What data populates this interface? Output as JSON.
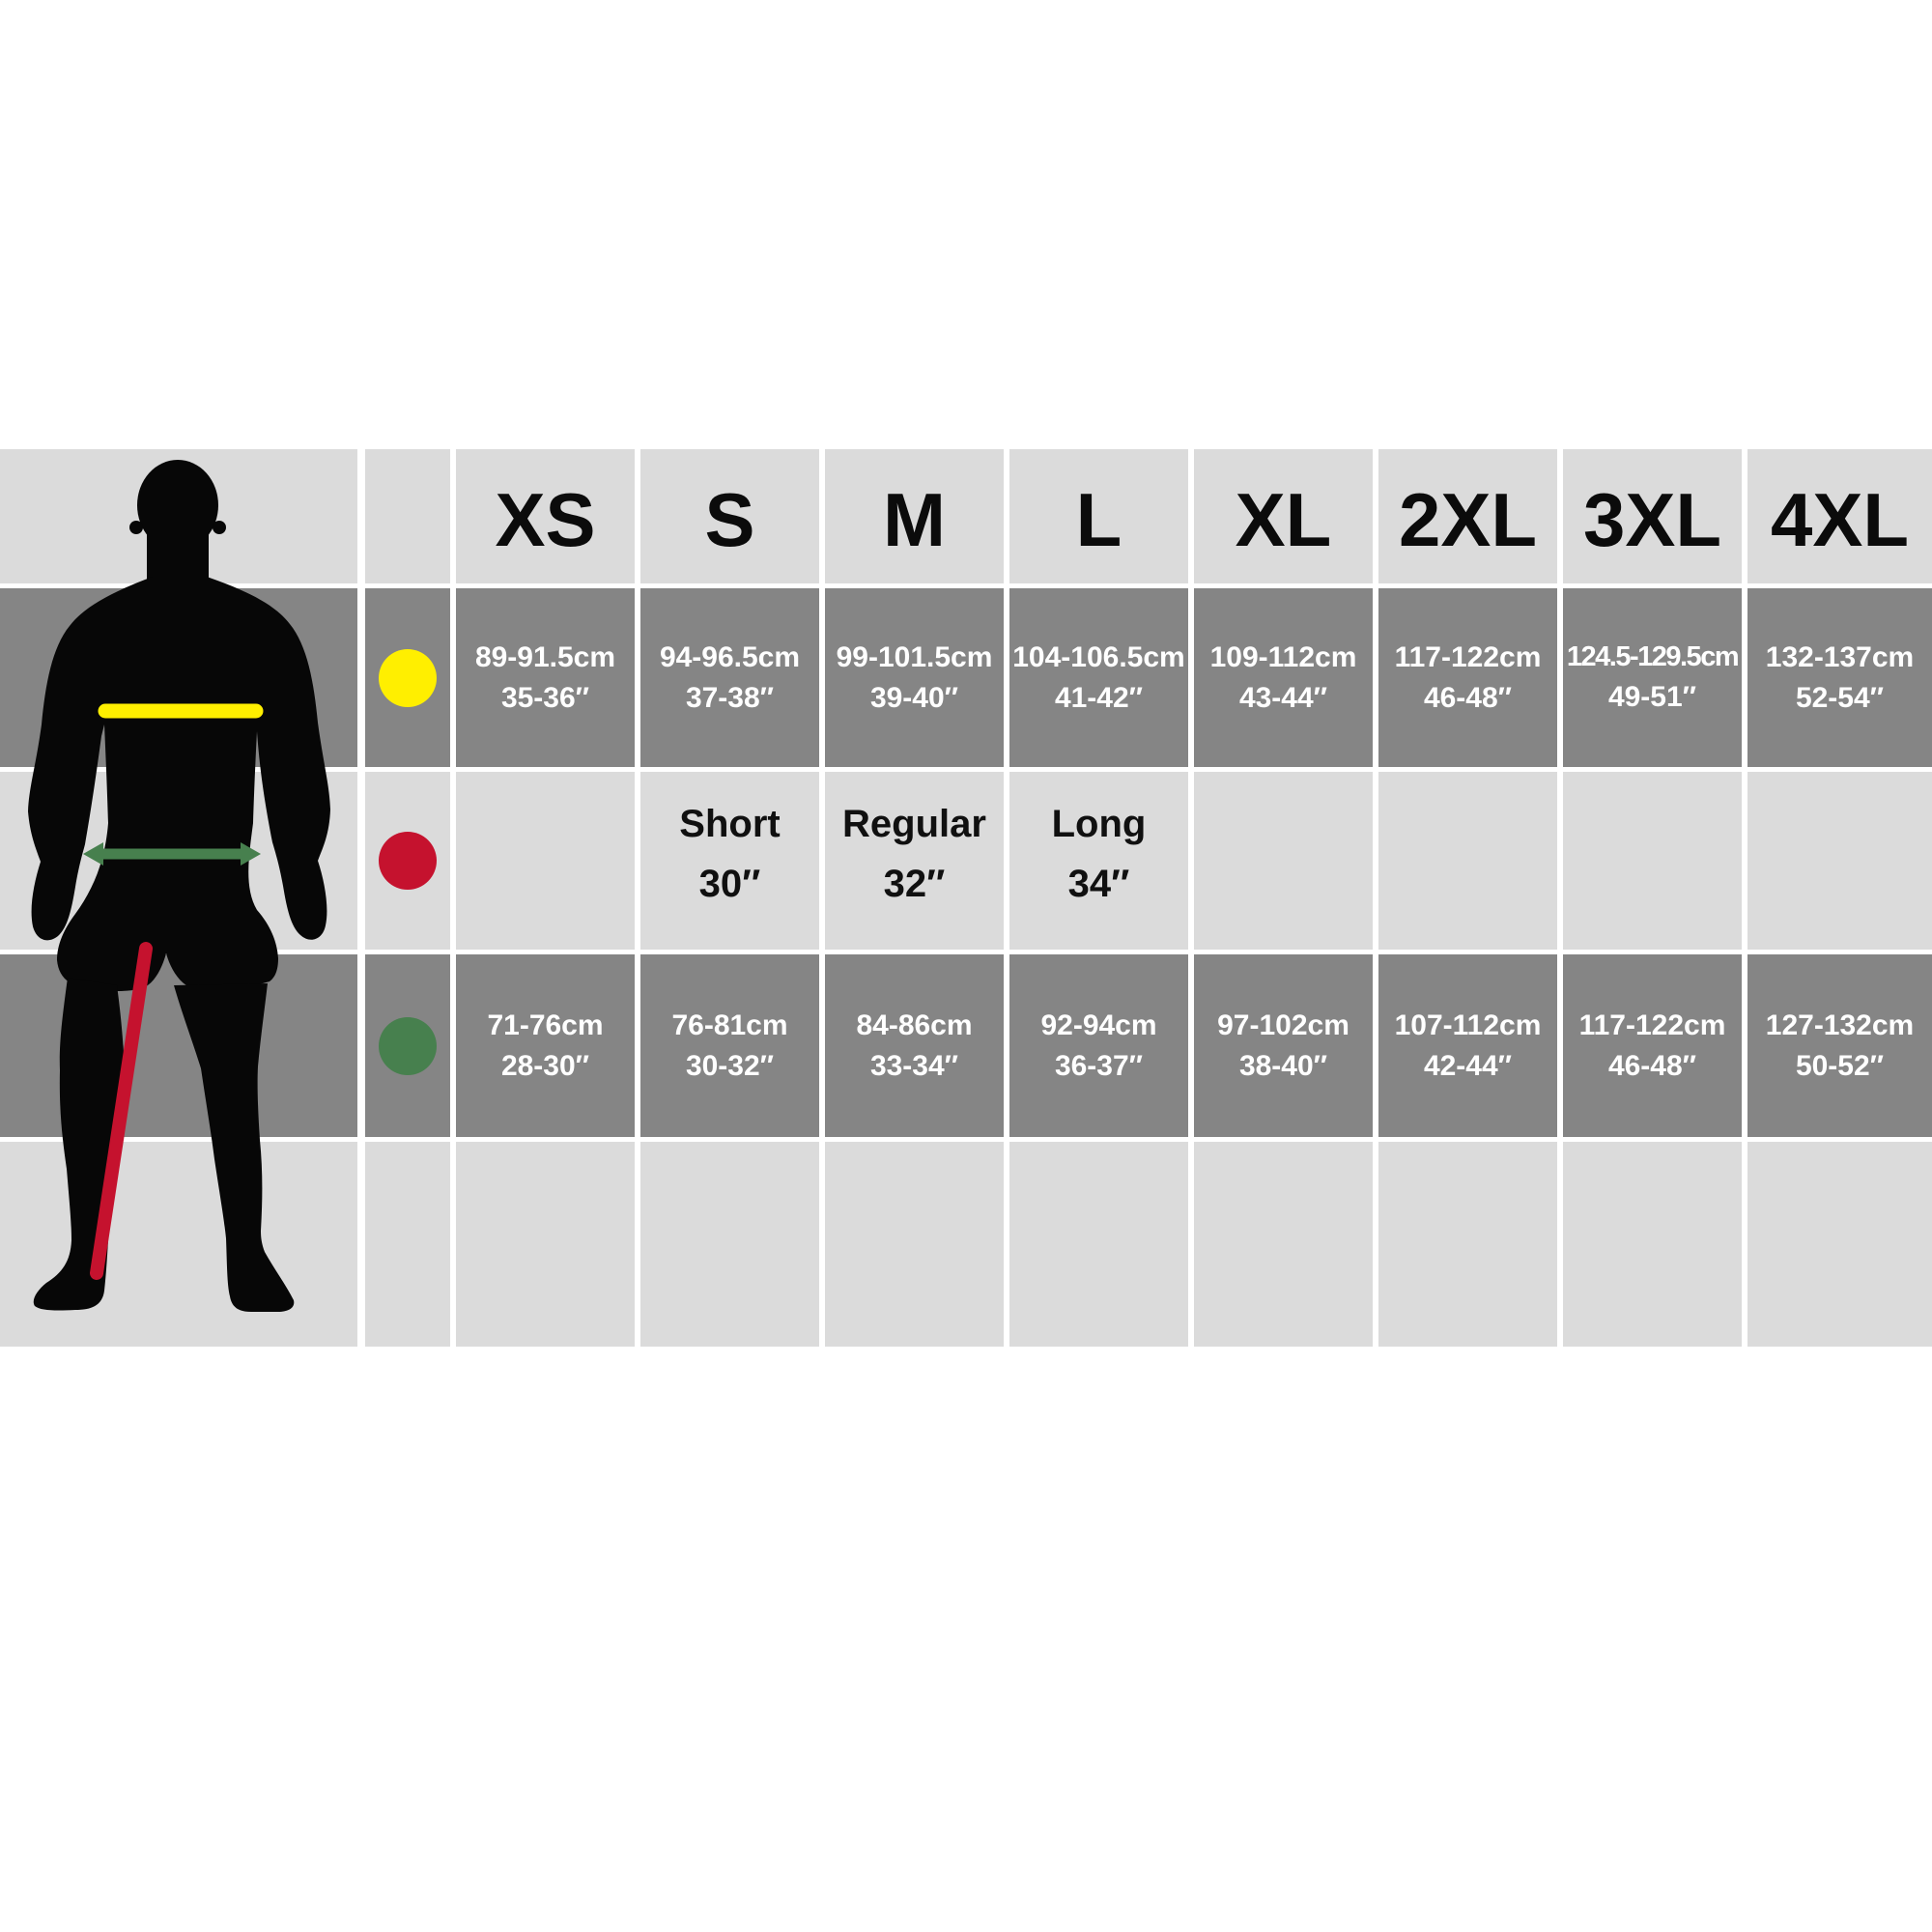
{
  "page": {
    "background": "#ffffff"
  },
  "colors": {
    "cell_dark": "#858585",
    "cell_light": "#dbdbdb",
    "gap_white": "#ffffff",
    "text_on_dark": "#ffffff",
    "text_on_light": "#0d0d0d",
    "silhouette_black": "#070707",
    "marker_yellow": "#ffef00",
    "marker_red": "#c5122e",
    "marker_green": "#47804e"
  },
  "chart_data": {
    "type": "table",
    "title": "Menswear size chart with body measurement markers",
    "legend": [
      {
        "marker": "yellow-dot",
        "meaning": "chest measurement line on figure"
      },
      {
        "marker": "red-dot",
        "meaning": "inside leg length line on figure"
      },
      {
        "marker": "green-dot",
        "meaning": "waist measurement arrow on figure"
      }
    ],
    "columns": [
      "XS",
      "S",
      "M",
      "L",
      "XL",
      "2XL",
      "3XL",
      "4XL"
    ],
    "rows": [
      {
        "id": "chest",
        "marker_color_key": "marker_yellow",
        "style": "dark",
        "cells": [
          [
            "89-91.5cm",
            "35-36″"
          ],
          [
            "94-96.5cm",
            "37-38″"
          ],
          [
            "99-101.5cm",
            "39-40″"
          ],
          [
            "104-106.5cm",
            "41-42″"
          ],
          [
            "109-112cm",
            "43-44″"
          ],
          [
            "117-122cm",
            "46-48″"
          ],
          [
            "124.5-129.5cm",
            "49-51″"
          ],
          [
            "132-137cm",
            "52-54″"
          ]
        ]
      },
      {
        "id": "leg-length",
        "marker_color_key": "marker_red",
        "style": "light",
        "cells": [
          null,
          [
            "Short",
            "30″"
          ],
          [
            "Regular",
            "32″"
          ],
          [
            "Long",
            "34″"
          ],
          null,
          null,
          null,
          null
        ]
      },
      {
        "id": "waist",
        "marker_color_key": "marker_green",
        "style": "dark",
        "cells": [
          [
            "71-76cm",
            "28-30″"
          ],
          [
            "76-81cm",
            "30-32″"
          ],
          [
            "84-86cm",
            "33-34″"
          ],
          [
            "92-94cm",
            "36-37″"
          ],
          [
            "97-102cm",
            "38-40″"
          ],
          [
            "107-112cm",
            "42-44″"
          ],
          [
            "117-122cm",
            "46-48″"
          ],
          [
            "127-132cm",
            "50-52″"
          ]
        ]
      },
      {
        "id": "bottom-spacer",
        "marker_color_key": null,
        "style": "light",
        "cells": [
          null,
          null,
          null,
          null,
          null,
          null,
          null,
          null
        ]
      }
    ]
  }
}
